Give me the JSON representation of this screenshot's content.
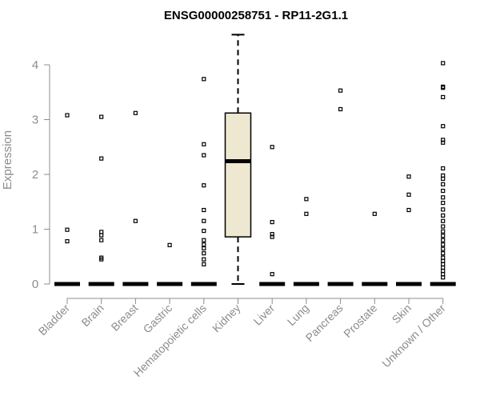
{
  "chart_data": {
    "type": "box",
    "title": "ENSG00000258751 - RP11-2G1.1",
    "xlabel": "",
    "ylabel": "Expression",
    "ylim": [
      0,
      4.5
    ],
    "yticks": [
      0,
      1,
      2,
      3,
      4
    ],
    "box_fill": "#EDE8CF",
    "categories": [
      "Bladder",
      "Brain",
      "Breast",
      "Gastric",
      "Hematopoietic cells",
      "Kidney",
      "Liver",
      "Lung",
      "Pancreas",
      "Prostate",
      "Skin",
      "Unknown / Other"
    ],
    "series": [
      {
        "category": "Bladder",
        "whisker_low": 0,
        "q1": 0,
        "median": 0,
        "q3": 0,
        "whisker_high": 0,
        "outliers": [
          3.08,
          0.99,
          0.78
        ]
      },
      {
        "category": "Brain",
        "whisker_low": 0,
        "q1": 0,
        "median": 0,
        "q3": 0,
        "whisker_high": 0,
        "outliers": [
          3.05,
          2.29,
          0.95,
          0.89,
          0.8,
          0.48,
          0.45
        ]
      },
      {
        "category": "Breast",
        "whisker_low": 0,
        "q1": 0,
        "median": 0,
        "q3": 0,
        "whisker_high": 0,
        "outliers": [
          3.12,
          1.15
        ]
      },
      {
        "category": "Gastric",
        "whisker_low": 0,
        "q1": 0,
        "median": 0,
        "q3": 0,
        "whisker_high": 0,
        "outliers": [
          0.71
        ]
      },
      {
        "category": "Hematopoietic cells",
        "whisker_low": 0,
        "q1": 0,
        "median": 0,
        "q3": 0,
        "whisker_high": 0,
        "outliers": [
          3.74,
          2.55,
          2.35,
          1.8,
          1.35,
          1.15,
          0.97,
          0.8,
          0.72,
          0.65,
          0.56,
          0.45,
          0.36
        ]
      },
      {
        "category": "Kidney",
        "whisker_low": 0,
        "q1": 0.86,
        "median": 2.24,
        "q3": 3.12,
        "whisker_high": 4.55,
        "outliers": []
      },
      {
        "category": "Liver",
        "whisker_low": 0,
        "q1": 0,
        "median": 0,
        "q3": 0,
        "whisker_high": 0,
        "outliers": [
          2.5,
          1.13,
          0.91,
          0.86,
          0.18
        ]
      },
      {
        "category": "Lung",
        "whisker_low": 0,
        "q1": 0,
        "median": 0,
        "q3": 0,
        "whisker_high": 0,
        "outliers": [
          1.55,
          1.28
        ]
      },
      {
        "category": "Pancreas",
        "whisker_low": 0,
        "q1": 0,
        "median": 0,
        "q3": 0,
        "whisker_high": 0,
        "outliers": [
          3.53,
          3.19
        ]
      },
      {
        "category": "Prostate",
        "whisker_low": 0,
        "q1": 0,
        "median": 0,
        "q3": 0,
        "whisker_high": 0,
        "outliers": [
          1.28
        ]
      },
      {
        "category": "Skin",
        "whisker_low": 0,
        "q1": 0,
        "median": 0,
        "q3": 0,
        "whisker_high": 0,
        "outliers": [
          1.96,
          1.63,
          1.35
        ]
      },
      {
        "category": "Unknown / Other",
        "whisker_low": 0,
        "q1": 0,
        "median": 0,
        "q3": 0,
        "whisker_high": 0,
        "outliers": [
          4.03,
          3.6,
          3.58,
          3.41,
          2.88,
          2.63,
          2.58,
          2.11,
          1.98,
          1.92,
          1.82,
          1.7,
          1.58,
          1.48,
          1.36,
          1.25,
          1.15,
          1.05,
          0.96,
          0.88,
          0.8,
          0.72,
          0.64,
          0.56,
          0.48,
          0.42,
          0.36,
          0.3,
          0.24,
          0.18,
          0.12
        ]
      }
    ]
  }
}
